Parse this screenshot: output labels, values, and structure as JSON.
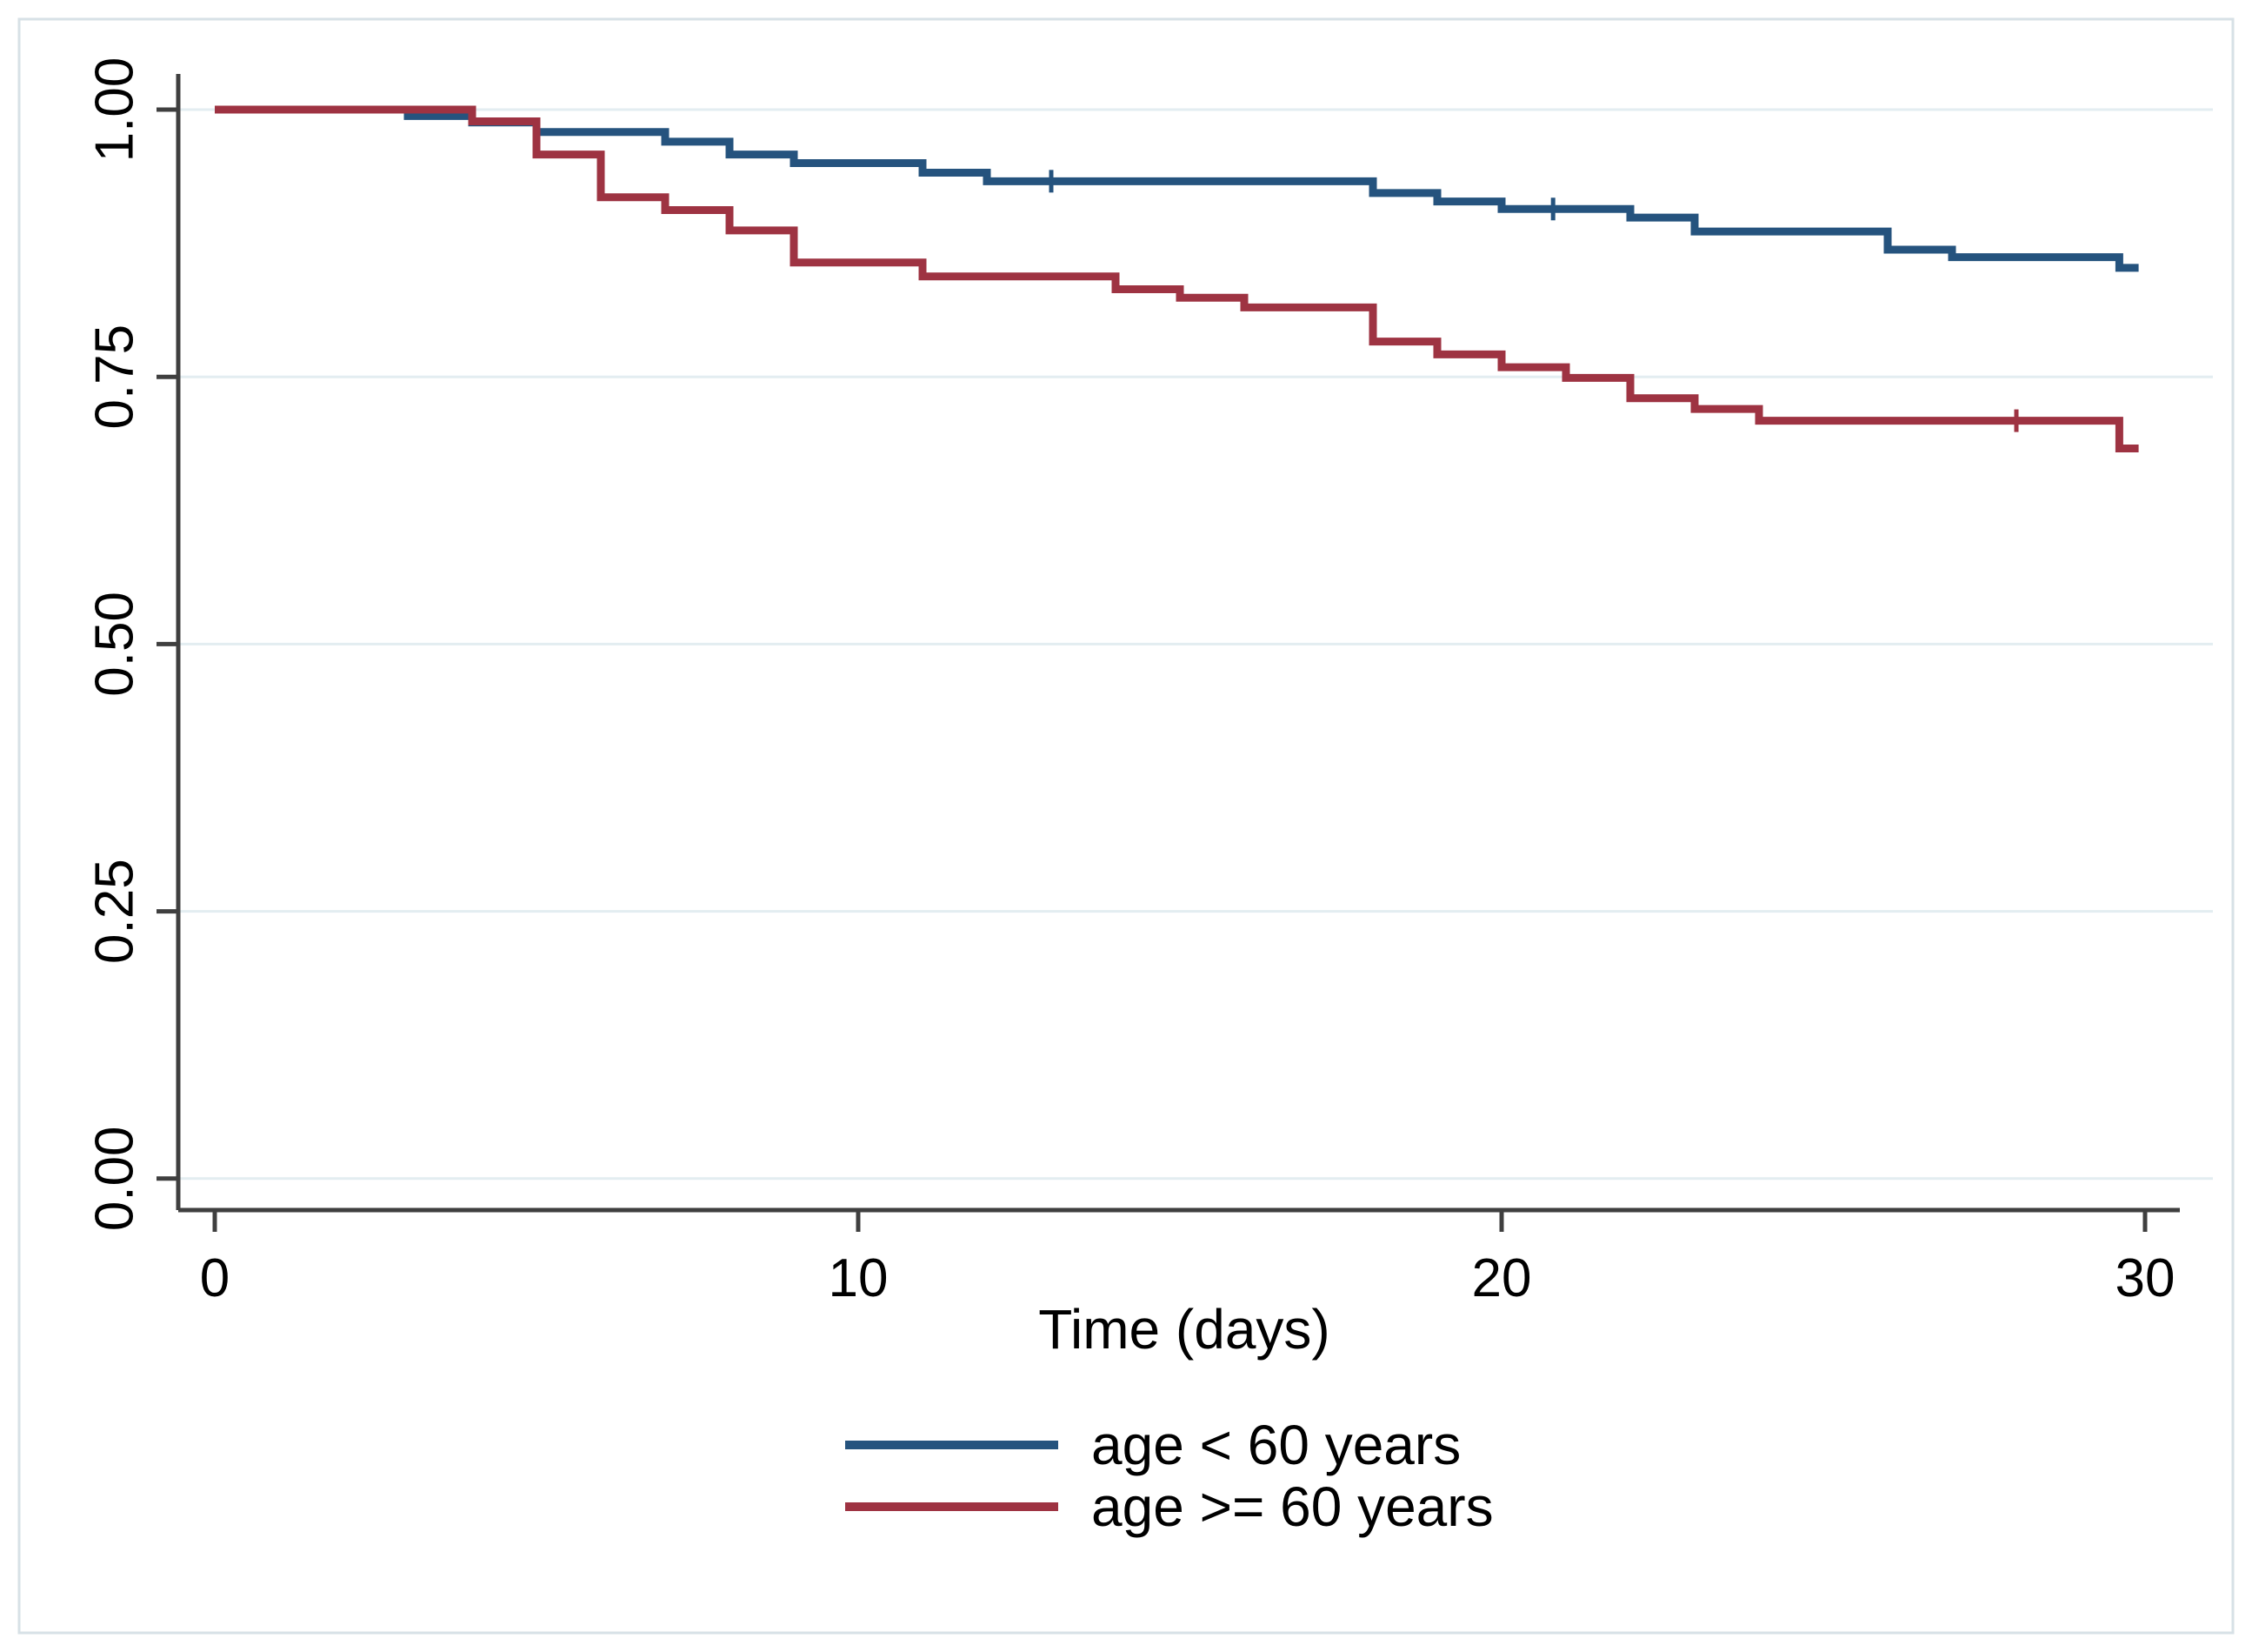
{
  "figure": {
    "background": "#ffffff"
  },
  "axes": {
    "x_title": "Time (days)",
    "x_tick_labels": [
      "0",
      "10",
      "20",
      "30"
    ],
    "y_tick_labels": [
      "1.00",
      "0.75",
      "0.50",
      "0.25",
      "0.00"
    ]
  },
  "legend": {
    "items": [
      {
        "label": "age < 60 years",
        "color": "#25537e"
      },
      {
        "label": "age >= 60 years",
        "color": "#9e3342"
      }
    ]
  },
  "chart_data": {
    "type": "line",
    "subtype": "kaplan_meier_step",
    "title": "",
    "xlabel": "Time (days)",
    "ylabel": "",
    "xlim": [
      0,
      30
    ],
    "ylim": [
      0.0,
      1.0
    ],
    "x_ticks": [
      0,
      10,
      20,
      30
    ],
    "y_ticks": [
      1.0,
      0.75,
      0.5,
      0.25,
      0.0
    ],
    "grid": "horizontal",
    "legend_position": "below-center",
    "colors": {
      "axis": "#3f3f3f",
      "grid": "#e3edf1",
      "border": "#d7e1e6",
      "text": "#000000"
    },
    "series": [
      {
        "name": "age < 60 years",
        "color": "#25537e",
        "end_time": 29.9,
        "points": [
          [
            0,
            1.0
          ],
          [
            3,
            0.994
          ],
          [
            4,
            0.988
          ],
          [
            5,
            0.979
          ],
          [
            7,
            0.97
          ],
          [
            8,
            0.958
          ],
          [
            9,
            0.95
          ],
          [
            11,
            0.941
          ],
          [
            12,
            0.933
          ],
          [
            18,
            0.922
          ],
          [
            19,
            0.914
          ],
          [
            20,
            0.907
          ],
          [
            22,
            0.899
          ],
          [
            23,
            0.886
          ],
          [
            26,
            0.869
          ],
          [
            27,
            0.862
          ],
          [
            29.6,
            0.852
          ]
        ],
        "censor_marks": [
          [
            13,
            0.933
          ],
          [
            20.8,
            0.907
          ]
        ]
      },
      {
        "name": "age >= 60 years",
        "color": "#9e3342",
        "end_time": 29.9,
        "points": [
          [
            0,
            1.0
          ],
          [
            4,
            0.989
          ],
          [
            5,
            0.958
          ],
          [
            6,
            0.918
          ],
          [
            7,
            0.906
          ],
          [
            8,
            0.887
          ],
          [
            9,
            0.857
          ],
          [
            11,
            0.844
          ],
          [
            14,
            0.832
          ],
          [
            15,
            0.824
          ],
          [
            16,
            0.815
          ],
          [
            18,
            0.783
          ],
          [
            19,
            0.771
          ],
          [
            20,
            0.759
          ],
          [
            21,
            0.749
          ],
          [
            22,
            0.73
          ],
          [
            23,
            0.72
          ],
          [
            24,
            0.709
          ],
          [
            29.6,
            0.683
          ]
        ],
        "censor_marks": [
          [
            28,
            0.709
          ]
        ]
      }
    ]
  }
}
